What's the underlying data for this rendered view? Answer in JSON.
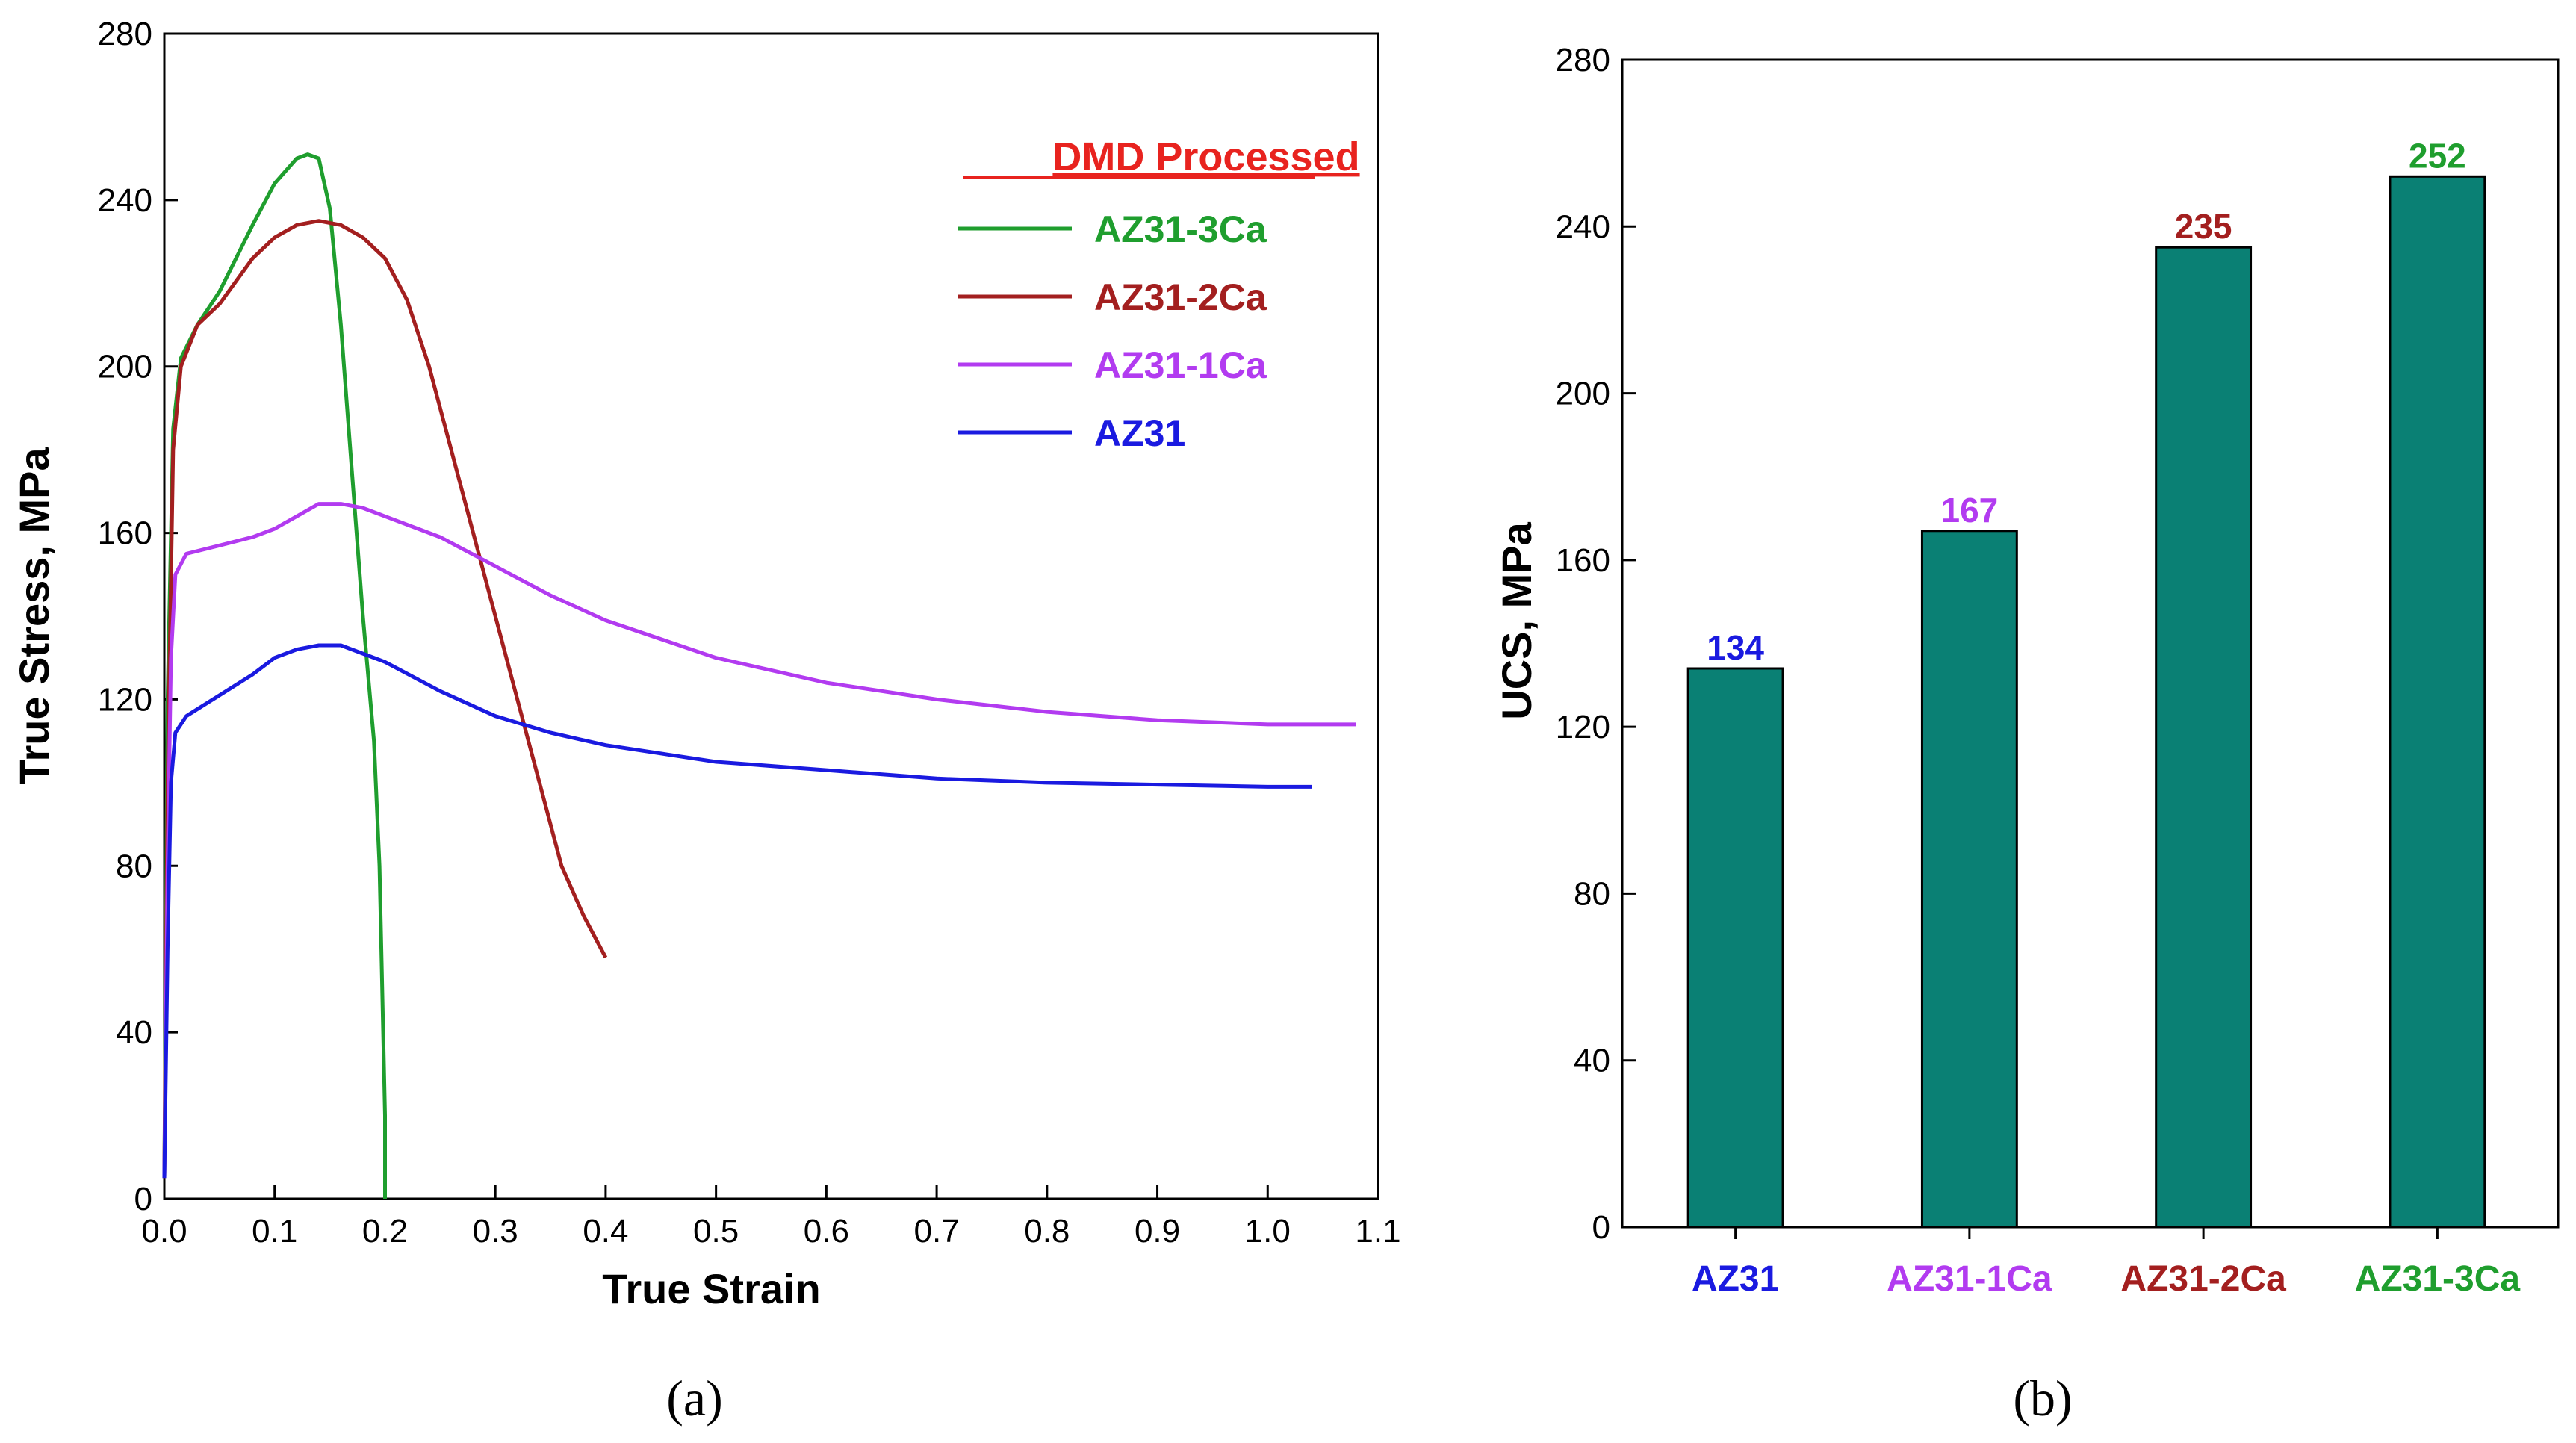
{
  "colors": {
    "AZ31": "#1a1ae0",
    "AZ31-1Ca": "#b23bf0",
    "AZ31-2Ca": "#a31f1f",
    "AZ31-3Ca": "#1f9e2e",
    "bar_fill": "#0a8074",
    "legend_title": "#e8231f"
  },
  "chart_data": [
    {
      "id": "a",
      "type": "line",
      "caption": "(a)",
      "xlabel": "True Strain",
      "ylabel": "True Stress, MPa",
      "xlim": [
        0,
        1.1
      ],
      "ylim": [
        0,
        280
      ],
      "xticks": [
        "0.0",
        "0.1",
        "0.2",
        "0.3",
        "0.4",
        "0.5",
        "0.6",
        "0.7",
        "0.8",
        "0.9",
        "1.0",
        "1.1"
      ],
      "yticks": [
        "0",
        "40",
        "80",
        "120",
        "160",
        "200",
        "240",
        "280"
      ],
      "legend_title": "DMD Processed",
      "legend_position": "top-right",
      "grid": false,
      "series": [
        {
          "name": "AZ31-3Ca",
          "x": [
            0.0,
            0.003,
            0.008,
            0.015,
            0.03,
            0.05,
            0.08,
            0.1,
            0.12,
            0.13,
            0.14,
            0.15,
            0.16,
            0.17,
            0.18,
            0.19,
            0.195,
            0.2,
            0.2
          ],
          "y": [
            5,
            120,
            185,
            202,
            210,
            218,
            234,
            244,
            250,
            251,
            250,
            238,
            210,
            175,
            140,
            110,
            80,
            20,
            0
          ]
        },
        {
          "name": "AZ31-2Ca",
          "x": [
            0.0,
            0.003,
            0.008,
            0.015,
            0.03,
            0.05,
            0.08,
            0.1,
            0.12,
            0.14,
            0.16,
            0.18,
            0.2,
            0.22,
            0.24,
            0.26,
            0.28,
            0.3,
            0.32,
            0.34,
            0.36,
            0.38,
            0.4
          ],
          "y": [
            5,
            100,
            180,
            200,
            210,
            215,
            226,
            231,
            234,
            235,
            234,
            231,
            226,
            216,
            200,
            180,
            160,
            140,
            120,
            100,
            80,
            68,
            58
          ]
        },
        {
          "name": "AZ31-1Ca",
          "x": [
            0.0,
            0.003,
            0.006,
            0.01,
            0.02,
            0.05,
            0.08,
            0.1,
            0.12,
            0.14,
            0.16,
            0.18,
            0.2,
            0.25,
            0.3,
            0.35,
            0.4,
            0.5,
            0.6,
            0.7,
            0.8,
            0.9,
            1.0,
            1.08
          ],
          "y": [
            5,
            80,
            130,
            150,
            155,
            157,
            159,
            161,
            164,
            167,
            167,
            166,
            164,
            159,
            152,
            145,
            139,
            130,
            124,
            120,
            117,
            115,
            114,
            114
          ]
        },
        {
          "name": "AZ31",
          "x": [
            0.0,
            0.003,
            0.006,
            0.01,
            0.02,
            0.05,
            0.08,
            0.1,
            0.12,
            0.14,
            0.16,
            0.18,
            0.2,
            0.25,
            0.3,
            0.35,
            0.4,
            0.5,
            0.6,
            0.7,
            0.8,
            0.9,
            1.0,
            1.04
          ],
          "y": [
            5,
            60,
            100,
            112,
            116,
            121,
            126,
            130,
            132,
            133,
            133,
            131,
            129,
            122,
            116,
            112,
            109,
            105,
            103,
            101,
            100,
            99.5,
            99,
            99
          ]
        }
      ]
    },
    {
      "id": "b",
      "type": "bar",
      "caption": "(b)",
      "xlabel": "",
      "ylabel": "UCS, MPa",
      "ylim": [
        0,
        280
      ],
      "yticks": [
        "0",
        "40",
        "80",
        "120",
        "160",
        "200",
        "240",
        "280"
      ],
      "categories": [
        "AZ31",
        "AZ31-1Ca",
        "AZ31-2Ca",
        "AZ31-3Ca"
      ],
      "values": [
        134,
        167,
        235,
        252
      ],
      "value_labels": [
        "134",
        "167",
        "235",
        "252"
      ],
      "grid": false
    }
  ]
}
